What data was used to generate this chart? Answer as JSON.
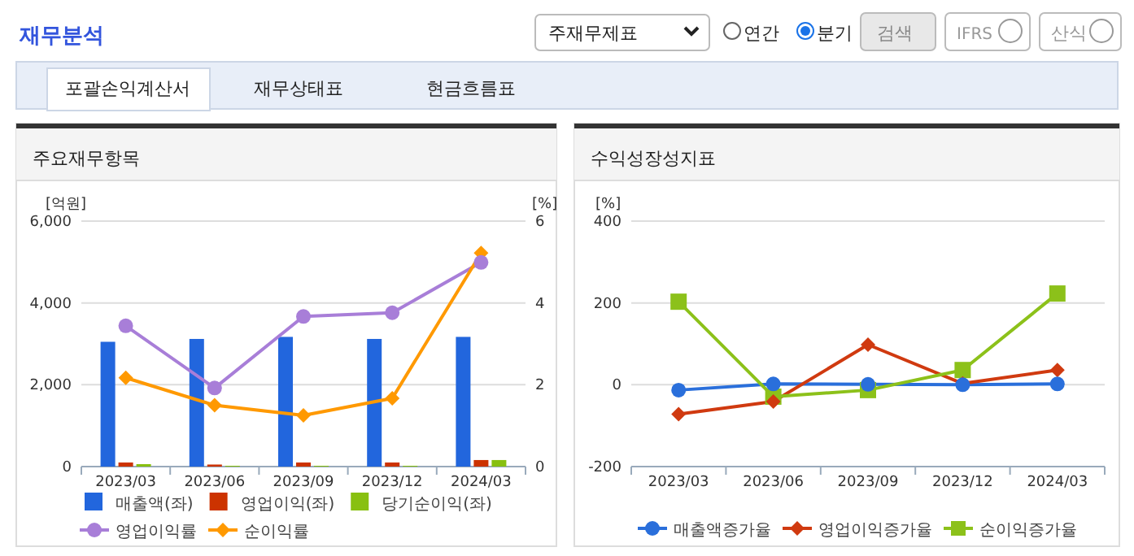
{
  "chart_data": [
    {
      "type": "bar",
      "title": "주요재무항목",
      "ylabel": "[억원]",
      "y2label": "[%]",
      "categories": [
        "2023/03",
        "2023/06",
        "2023/09",
        "2023/12",
        "2024/03"
      ],
      "series": [
        {
          "name": "매출액(좌)",
          "color": "#2266dd",
          "values": [
            3050,
            3120,
            3170,
            3120,
            3170
          ]
        },
        {
          "name": "영업이익(좌)",
          "color": "#cc3300",
          "values": [
            100,
            50,
            100,
            100,
            160
          ]
        },
        {
          "name": "당기순이익(좌)",
          "color": "#88c010",
          "values": [
            60,
            20,
            20,
            20,
            160
          ]
        },
        {
          "name": "영업이익률",
          "type": "line",
          "axis": "y2",
          "marker": "circle",
          "color": "#a87ed8",
          "values": [
            3.44,
            1.92,
            3.67,
            3.76,
            4.99
          ]
        },
        {
          "name": "순이익률",
          "type": "line",
          "axis": "y2",
          "marker": "diamond",
          "color": "#ff9900",
          "values": [
            2.17,
            1.5,
            1.25,
            1.67,
            5.22
          ]
        }
      ],
      "ylim": [
        0,
        6000
      ],
      "yticks": [
        0,
        {
          "value": 2000,
          "label": "2,000"
        },
        {
          "value": 4000,
          "label": "4,000"
        },
        {
          "value": 6000,
          "label": "6,000"
        }
      ],
      "y2lim": [
        0,
        6
      ],
      "y2ticks": [
        0,
        2,
        4,
        6
      ],
      "grid": "y",
      "legend": "bottom",
      "annotations": [
        "재무분석",
        "주재무제표",
        "연간",
        "분기",
        "검색",
        "IFRS",
        "산식",
        "포괄손익계산서",
        "재무상태표",
        "현금흐름표"
      ]
    },
    {
      "type": "line",
      "title": "수익성장성지표",
      "ylabel": "[%]",
      "categories": [
        "2023/03",
        "2023/06",
        "2023/09",
        "2023/12",
        "2024/03"
      ],
      "series": [
        {
          "name": "매출액증가율",
          "marker": "circle",
          "color": "#2a6fdb",
          "values": [
            -13,
            2,
            1,
            0,
            2
          ]
        },
        {
          "name": "영업이익증가율",
          "marker": "diamond",
          "color": "#d03a10",
          "values": [
            -72,
            -41,
            98,
            3,
            36
          ]
        },
        {
          "name": "순이익증가율",
          "marker": "square",
          "color": "#8cc11a",
          "values": [
            203,
            -29,
            -13,
            36,
            223
          ]
        }
      ],
      "ylim": [
        -200,
        400
      ],
      "yticks": [
        -200,
        0,
        200,
        400
      ],
      "grid": "y",
      "legend": "bottom"
    }
  ]
}
